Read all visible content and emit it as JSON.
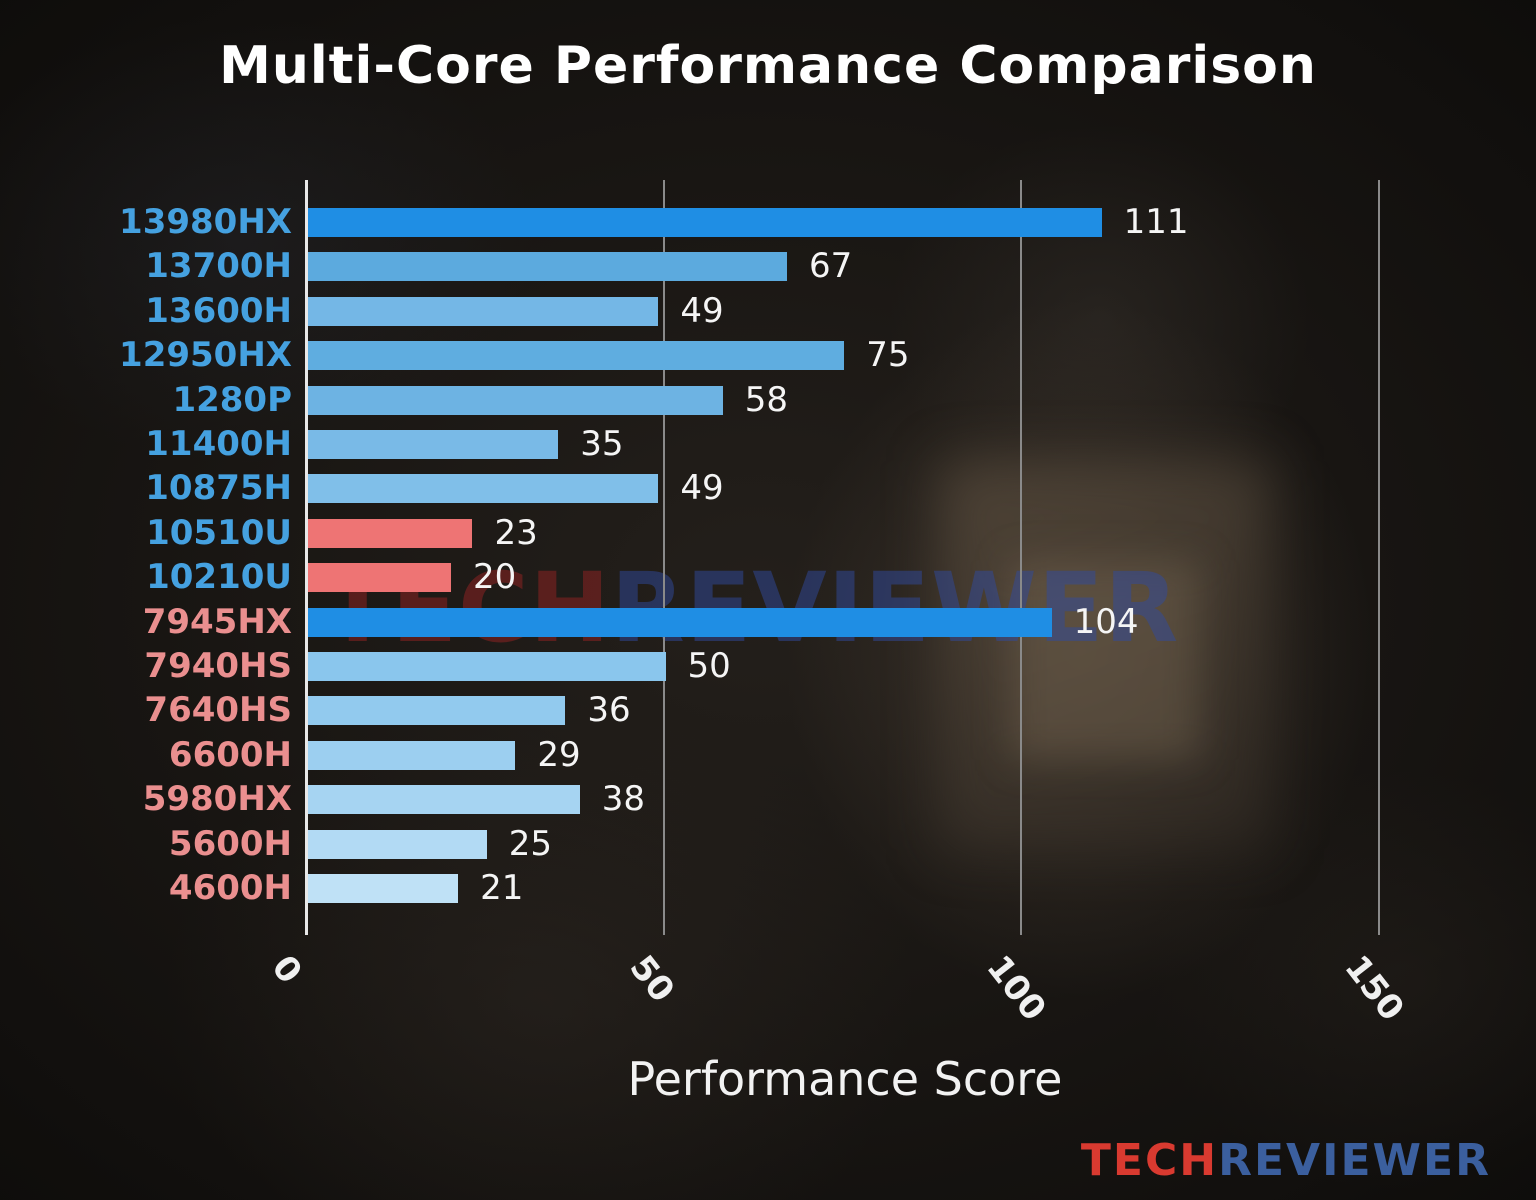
{
  "chart_data": {
    "type": "bar",
    "orientation": "horizontal",
    "title": "Multi-Core Performance Comparison",
    "xlabel": "Performance Score",
    "xlim": [
      0,
      155
    ],
    "xticks": [
      0,
      50,
      100,
      150
    ],
    "grid": "vertical gridlines at x ticks",
    "legend": "none",
    "categories": [
      "13980HX",
      "13700H",
      "13600H",
      "12950HX",
      "1280P",
      "11400H",
      "10875H",
      "10510U",
      "10210U",
      "7945HX",
      "7940HS",
      "7640HS",
      "6600H",
      "5980HX",
      "5600H",
      "4600H"
    ],
    "values": [
      111,
      67,
      49,
      75,
      58,
      35,
      49,
      23,
      20,
      104,
      50,
      36,
      29,
      38,
      25,
      21
    ],
    "bar_colors": [
      "#1f8ee4",
      "#5caade",
      "#74b7e6",
      "#5fade0",
      "#6db3e3",
      "#79bae7",
      "#80bfe9",
      "#ee7474",
      "#ee7474",
      "#1f8ee4",
      "#8ac6ed",
      "#92caee",
      "#9ccff0",
      "#a6d4f2",
      "#b2daf4",
      "#bfe1f6"
    ],
    "label_colors": [
      "#45a1e0",
      "#45a1e0",
      "#45a1e0",
      "#45a1e0",
      "#45a1e0",
      "#45a1e0",
      "#45a1e0",
      "#45a1e0",
      "#45a1e0",
      "#ea8f8f",
      "#ea8f8f",
      "#ea8f8f",
      "#ea8f8f",
      "#ea8f8f",
      "#ea8f8f",
      "#ea8f8f"
    ],
    "highlight_bar_color": "#1f8ee4",
    "accent_red_bar_color": "#ee7474",
    "value_label_color": "#f5f5f5"
  },
  "watermark": {
    "text_red": "TECH",
    "text_blue": "REVIEWER"
  },
  "logo": {
    "text_red": "TECH",
    "text_blue": "REVIEWER",
    "color_red": "#d93a30",
    "color_blue": "#3b5f9e"
  }
}
